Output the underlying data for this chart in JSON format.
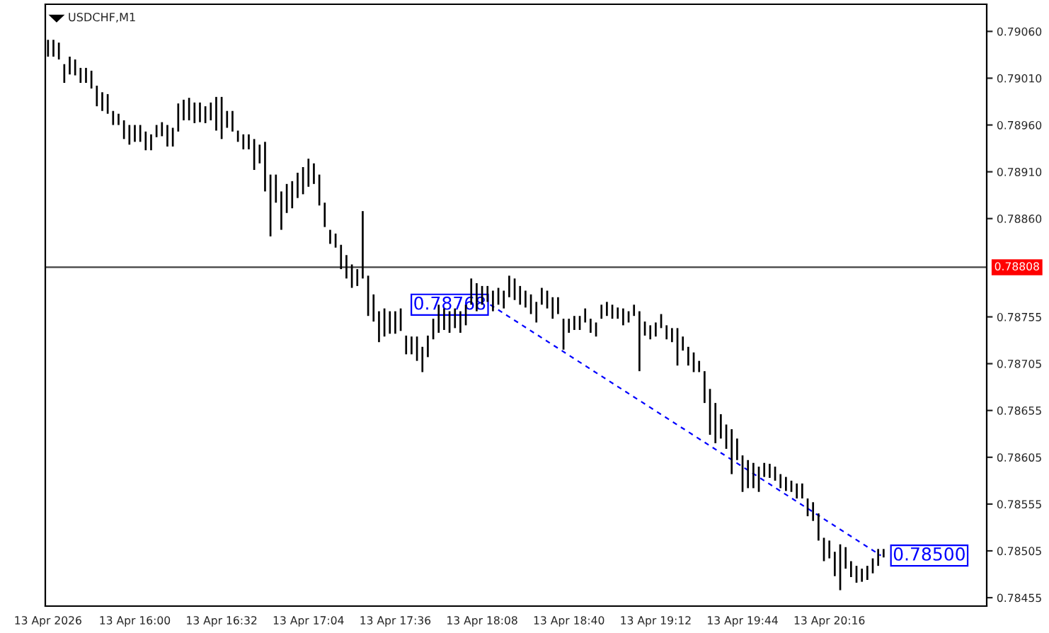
{
  "chart_data": {
    "type": "bar",
    "title": "USDCHF,M1",
    "xlim": [
      "2026-04-13T15:27",
      "2026-04-13T21:14"
    ],
    "xticks": [
      {
        "value": "2026-04-13T15:28",
        "label": "13 Apr 2026"
      },
      {
        "value": "2026-04-13T16:00",
        "label": "13 Apr 16:00"
      },
      {
        "value": "2026-04-13T16:32",
        "label": "13 Apr 16:32"
      },
      {
        "value": "2026-04-13T17:04",
        "label": "13 Apr 17:04"
      },
      {
        "value": "2026-04-13T17:36",
        "label": "13 Apr 17:36"
      },
      {
        "value": "2026-04-13T18:08",
        "label": "13 Apr 18:08"
      },
      {
        "value": "2026-04-13T18:40",
        "label": "13 Apr 18:40"
      },
      {
        "value": "2026-04-13T19:12",
        "label": "13 Apr 19:12"
      },
      {
        "value": "2026-04-13T19:44",
        "label": "13 Apr 19:44"
      },
      {
        "value": "2026-04-13T20:16",
        "label": "13 Apr 20:16"
      }
    ],
    "ylim": [
      0.78446,
      0.79089
    ],
    "yticks": [
      {
        "value": 0.7906,
        "label": "0.79060"
      },
      {
        "value": 0.7901,
        "label": "0.79010"
      },
      {
        "value": 0.7896,
        "label": "0.78960"
      },
      {
        "value": 0.7891,
        "label": "0.78910"
      },
      {
        "value": 0.7886,
        "label": "0.78860"
      },
      {
        "value": 0.78755,
        "label": "0.78755"
      },
      {
        "value": 0.78705,
        "label": "0.78705"
      },
      {
        "value": 0.78655,
        "label": "0.78655"
      },
      {
        "value": 0.78605,
        "label": "0.78605"
      },
      {
        "value": 0.78555,
        "label": "0.78555"
      },
      {
        "value": 0.78505,
        "label": "0.78505"
      },
      {
        "value": 0.78455,
        "label": "0.78455"
      }
    ],
    "ref_lines": [
      {
        "axis": "y",
        "value": 0.78808,
        "label": "0.78808",
        "color": "#404040"
      }
    ],
    "annotations": [
      {
        "text": "0.78768",
        "x": "2026-04-13T18:11",
        "y": 0.78768
      },
      {
        "text": "0.78500",
        "x": "2026-04-13T20:35",
        "y": 0.785
      }
    ],
    "series": [
      {
        "color": "#000000",
        "x": [
          "2026-04-13T15:28",
          "2026-04-13T15:30",
          "2026-04-13T15:32",
          "2026-04-13T15:34",
          "2026-04-13T15:36",
          "2026-04-13T15:38",
          "2026-04-13T15:40",
          "2026-04-13T15:42",
          "2026-04-13T15:44",
          "2026-04-13T15:46",
          "2026-04-13T15:48",
          "2026-04-13T15:50",
          "2026-04-13T15:52",
          "2026-04-13T15:54",
          "2026-04-13T15:56",
          "2026-04-13T15:58",
          "2026-04-13T16:00",
          "2026-04-13T16:02",
          "2026-04-13T16:04",
          "2026-04-13T16:06",
          "2026-04-13T16:08",
          "2026-04-13T16:10",
          "2026-04-13T16:12",
          "2026-04-13T16:14",
          "2026-04-13T16:16",
          "2026-04-13T16:18",
          "2026-04-13T16:20",
          "2026-04-13T16:22",
          "2026-04-13T16:24",
          "2026-04-13T16:26",
          "2026-04-13T16:28",
          "2026-04-13T16:30",
          "2026-04-13T16:32",
          "2026-04-13T16:34",
          "2026-04-13T16:36",
          "2026-04-13T16:38",
          "2026-04-13T16:40",
          "2026-04-13T16:42",
          "2026-04-13T16:44",
          "2026-04-13T16:46",
          "2026-04-13T16:48",
          "2026-04-13T16:50",
          "2026-04-13T16:52",
          "2026-04-13T16:54",
          "2026-04-13T16:56",
          "2026-04-13T16:58",
          "2026-04-13T17:00",
          "2026-04-13T17:02",
          "2026-04-13T17:04",
          "2026-04-13T17:06",
          "2026-04-13T17:08",
          "2026-04-13T17:10",
          "2026-04-13T17:12",
          "2026-04-13T17:14",
          "2026-04-13T17:16",
          "2026-04-13T17:18",
          "2026-04-13T17:20",
          "2026-04-13T17:22",
          "2026-04-13T17:24",
          "2026-04-13T17:26",
          "2026-04-13T17:28",
          "2026-04-13T17:30",
          "2026-04-13T17:32",
          "2026-04-13T17:34",
          "2026-04-13T17:36",
          "2026-04-13T17:38",
          "2026-04-13T17:40",
          "2026-04-13T17:42",
          "2026-04-13T17:44",
          "2026-04-13T17:46",
          "2026-04-13T17:48",
          "2026-04-13T17:50",
          "2026-04-13T17:52",
          "2026-04-13T17:54",
          "2026-04-13T17:56",
          "2026-04-13T17:58",
          "2026-04-13T18:00",
          "2026-04-13T18:02",
          "2026-04-13T18:04",
          "2026-04-13T18:06",
          "2026-04-13T18:08",
          "2026-04-13T18:10",
          "2026-04-13T18:12",
          "2026-04-13T18:14",
          "2026-04-13T18:16",
          "2026-04-13T18:18",
          "2026-04-13T18:20",
          "2026-04-13T18:22",
          "2026-04-13T18:24",
          "2026-04-13T18:26",
          "2026-04-13T18:28",
          "2026-04-13T18:30",
          "2026-04-13T18:32",
          "2026-04-13T18:34",
          "2026-04-13T18:36",
          "2026-04-13T18:38",
          "2026-04-13T18:40",
          "2026-04-13T18:42",
          "2026-04-13T18:44",
          "2026-04-13T18:46",
          "2026-04-13T18:48",
          "2026-04-13T18:50",
          "2026-04-13T18:52",
          "2026-04-13T18:54",
          "2026-04-13T18:56",
          "2026-04-13T18:58",
          "2026-04-13T19:00",
          "2026-04-13T19:02",
          "2026-04-13T19:04",
          "2026-04-13T19:06",
          "2026-04-13T19:08",
          "2026-04-13T19:10",
          "2026-04-13T19:12",
          "2026-04-13T19:14",
          "2026-04-13T19:16",
          "2026-04-13T19:18",
          "2026-04-13T19:20",
          "2026-04-13T19:22",
          "2026-04-13T19:24",
          "2026-04-13T19:26",
          "2026-04-13T19:28",
          "2026-04-13T19:30",
          "2026-04-13T19:32",
          "2026-04-13T19:34",
          "2026-04-13T19:36",
          "2026-04-13T19:38",
          "2026-04-13T19:40",
          "2026-04-13T19:42",
          "2026-04-13T19:44",
          "2026-04-13T19:46",
          "2026-04-13T19:48",
          "2026-04-13T19:50",
          "2026-04-13T19:52",
          "2026-04-13T19:54",
          "2026-04-13T19:56",
          "2026-04-13T19:58",
          "2026-04-13T20:00",
          "2026-04-13T20:02",
          "2026-04-13T20:04",
          "2026-04-13T20:06",
          "2026-04-13T20:08",
          "2026-04-13T20:10",
          "2026-04-13T20:12",
          "2026-04-13T20:14",
          "2026-04-13T20:16",
          "2026-04-13T20:18",
          "2026-04-13T20:20",
          "2026-04-13T20:22",
          "2026-04-13T20:24",
          "2026-04-13T20:26",
          "2026-04-13T20:28",
          "2026-04-13T20:30",
          "2026-04-13T20:32",
          "2026-04-13T20:34",
          "2026-04-13T20:36"
        ],
        "base": [
          0.79033,
          0.79033,
          0.7903,
          0.79005,
          0.79014,
          0.79013,
          0.79005,
          0.79005,
          0.78999,
          0.7898,
          0.78975,
          0.78972,
          0.7896,
          0.7896,
          0.78945,
          0.78939,
          0.78942,
          0.78942,
          0.78933,
          0.78933,
          0.78947,
          0.78948,
          0.78937,
          0.78937,
          0.78953,
          0.78965,
          0.78965,
          0.78962,
          0.78963,
          0.78962,
          0.78965,
          0.78954,
          0.78945,
          0.78957,
          0.78953,
          0.78942,
          0.78934,
          0.78934,
          0.78912,
          0.78919,
          0.78889,
          0.78841,
          0.78877,
          0.78848,
          0.78866,
          0.78871,
          0.78882,
          0.78886,
          0.78894,
          0.78897,
          0.78874,
          0.78851,
          0.78833,
          0.78829,
          0.78806,
          0.78796,
          0.78786,
          0.78788,
          0.78796,
          0.78756,
          0.7875,
          0.78728,
          0.78734,
          0.78737,
          0.78737,
          0.7874,
          0.78715,
          0.78715,
          0.78708,
          0.78696,
          0.78712,
          0.78731,
          0.78738,
          0.78741,
          0.78738,
          0.78743,
          0.78738,
          0.78746,
          0.78768,
          0.78761,
          0.78768,
          0.78771,
          0.78761,
          0.78768,
          0.78764,
          0.78776,
          0.78773,
          0.78768,
          0.78765,
          0.78758,
          0.78749,
          0.78768,
          0.78764,
          0.78753,
          0.78758,
          0.7872,
          0.78738,
          0.78741,
          0.78741,
          0.78749,
          0.78738,
          0.78734,
          0.78753,
          0.78756,
          0.78753,
          0.78753,
          0.78746,
          0.78749,
          0.78756,
          0.78697,
          0.78735,
          0.78731,
          0.78734,
          0.78743,
          0.78731,
          0.78728,
          0.78703,
          0.78719,
          0.78703,
          0.78696,
          0.78696,
          0.78663,
          0.78629,
          0.7862,
          0.78625,
          0.78614,
          0.78587,
          0.78602,
          0.78568,
          0.78572,
          0.78572,
          0.78568,
          0.78584,
          0.78583,
          0.7858,
          0.78572,
          0.78569,
          0.78568,
          0.78561,
          0.78561,
          0.78542,
          0.78537,
          0.78516,
          0.78494,
          0.78497,
          0.78478,
          0.78463,
          0.78486,
          0.78477,
          0.78471,
          0.78472,
          0.78474,
          0.78481,
          0.78489,
          0.78498
        ],
        "values": [
          0.00018,
          0.00018,
          0.00018,
          0.0002,
          0.00019,
          0.00017,
          0.00016,
          0.00016,
          0.00019,
          0.00022,
          0.0002,
          0.00021,
          0.00015,
          0.00012,
          0.0002,
          0.00021,
          0.00018,
          0.00018,
          0.0002,
          0.00017,
          0.00013,
          0.00015,
          0.00023,
          0.0002,
          0.0003,
          0.00022,
          0.00024,
          0.00022,
          0.00021,
          0.00018,
          0.00019,
          0.00036,
          0.00045,
          0.00018,
          0.00022,
          0.00012,
          0.00016,
          0.00016,
          0.00033,
          0.0002,
          0.00053,
          0.00066,
          0.0003,
          0.00041,
          0.00031,
          0.00029,
          0.00027,
          0.00029,
          0.0003,
          0.00022,
          0.00033,
          0.00026,
          0.00015,
          0.00015,
          0.00026,
          0.00025,
          0.00025,
          0.00018,
          0.00072,
          0.00043,
          0.00029,
          0.00033,
          0.0003,
          0.00024,
          0.00024,
          0.00024,
          0.0002,
          0.00019,
          0.00026,
          0.00027,
          0.00023,
          0.00022,
          0.0003,
          0.00023,
          0.00023,
          0.00021,
          0.00023,
          0.00022,
          0.00028,
          0.0003,
          0.0002,
          0.00017,
          0.00022,
          0.00018,
          0.00019,
          0.00023,
          0.00023,
          0.0002,
          0.00018,
          0.00021,
          0.00022,
          0.00018,
          0.00019,
          0.00023,
          0.00018,
          0.00033,
          0.00015,
          0.00015,
          0.00015,
          0.00015,
          0.00015,
          0.00015,
          0.00015,
          0.00015,
          0.00015,
          0.00012,
          0.00018,
          0.00012,
          0.00012,
          0.00064,
          0.00015,
          0.00015,
          0.00015,
          0.00015,
          0.00015,
          0.00015,
          0.0004,
          0.00015,
          0.0002,
          0.00021,
          0.00012,
          0.00034,
          0.00049,
          0.00043,
          0.00026,
          0.00026,
          0.00048,
          0.00023,
          0.00039,
          0.0003,
          0.00027,
          0.00027,
          0.00015,
          0.00015,
          0.00015,
          0.00015,
          0.00015,
          0.00012,
          0.00016,
          0.00016,
          0.00019,
          0.0002,
          0.00029,
          0.00025,
          0.00019,
          0.00026,
          0.00049,
          0.00023,
          0.00017,
          0.00018,
          0.00014,
          0.00015,
          0.00016,
          0.00018,
          9e-05
        ]
      },
      {
        "type": "line",
        "color": "#0000ff",
        "line_style": "dashed",
        "x": [
          "2026-04-13T18:11",
          "2026-04-13T20:35"
        ],
        "values": [
          0.78768,
          0.785
        ]
      }
    ]
  }
}
